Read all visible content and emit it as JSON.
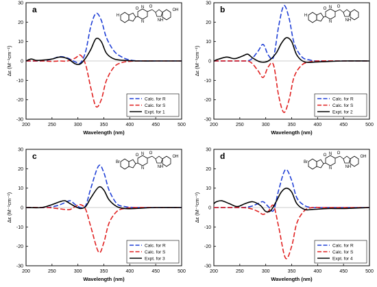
{
  "figure": {
    "colors": {
      "R": "#1f3fd6",
      "S": "#e02020",
      "expt": "#000000"
    },
    "panels": [
      {
        "label": "a",
        "structure": {
          "substituent": "H",
          "hydroxyl": "OH",
          "ring_atoms": [
            "O",
            "N",
            "N",
            "O",
            "NH"
          ]
        }
      },
      {
        "label": "b",
        "structure": {
          "substituent": "H",
          "hydroxyl": "",
          "ring_atoms": [
            "O",
            "N",
            "N",
            "O",
            "NH"
          ]
        }
      },
      {
        "label": "c",
        "structure": {
          "substituent": "Br",
          "hydroxyl": "OH",
          "ring_atoms": [
            "O",
            "N",
            "N",
            "O",
            "NH"
          ]
        }
      },
      {
        "label": "d",
        "structure": {
          "substituent": "Br",
          "hydroxyl": "OH",
          "ring_atoms": [
            "O",
            "N",
            "N",
            "O",
            "NH"
          ]
        }
      }
    ]
  },
  "chart_data": [
    {
      "type": "line",
      "panel": "a",
      "xlabel": "Wavelength (nm)",
      "ylabel": "Δε (M⁻¹cm⁻¹)",
      "xlim": [
        200,
        500
      ],
      "ylim": [
        -30,
        30
      ],
      "xticks": [
        200,
        250,
        300,
        350,
        400,
        450,
        500
      ],
      "yticks": [
        -30,
        -20,
        -10,
        0,
        10,
        20,
        30
      ],
      "legend_position": "bottom-right",
      "series": [
        {
          "name": "Calc. for R",
          "style": "dashed",
          "color": "#1f3fd6",
          "x": [
            200,
            230,
            250,
            265,
            280,
            295,
            305,
            315,
            325,
            335,
            345,
            355,
            370,
            385,
            400,
            420,
            450,
            500
          ],
          "y": [
            0,
            0,
            1,
            2.2,
            1.5,
            -0.5,
            -1,
            5,
            18,
            24.5,
            21,
            12,
            5,
            2,
            0.5,
            0,
            0,
            0
          ]
        },
        {
          "name": "Calc. for S",
          "style": "dashed",
          "color": "#e02020",
          "x": [
            200,
            230,
            250,
            265,
            280,
            295,
            305,
            315,
            325,
            335,
            345,
            355,
            370,
            385,
            400,
            420,
            450,
            500
          ],
          "y": [
            0,
            0,
            -0.2,
            0,
            0,
            1.5,
            3,
            -2,
            -14,
            -23.5,
            -20,
            -10,
            -3,
            -0.8,
            -0.2,
            0,
            0,
            0
          ]
        },
        {
          "name": "Expt. for 1",
          "style": "solid",
          "color": "#000000",
          "x": [
            200,
            210,
            220,
            235,
            250,
            265,
            280,
            295,
            305,
            315,
            325,
            335,
            345,
            355,
            370,
            390,
            420,
            450,
            500
          ],
          "y": [
            0,
            1,
            0.3,
            0.5,
            1,
            2,
            1.2,
            -1.5,
            -1.5,
            1.5,
            6,
            11.5,
            10,
            4,
            1,
            0.3,
            0,
            0,
            0
          ]
        }
      ]
    },
    {
      "type": "line",
      "panel": "b",
      "xlabel": "Wavelength (nm)",
      "ylabel": "Δε (M⁻¹cm⁻¹)",
      "xlim": [
        200,
        500
      ],
      "ylim": [
        -30,
        30
      ],
      "xticks": [
        200,
        250,
        300,
        350,
        400,
        450,
        500
      ],
      "yticks": [
        -30,
        -20,
        -10,
        0,
        10,
        20,
        30
      ],
      "legend_position": "bottom-right",
      "series": [
        {
          "name": "Calc. for R",
          "style": "dashed",
          "color": "#1f3fd6",
          "x": [
            200,
            250,
            270,
            285,
            295,
            305,
            315,
            325,
            335,
            345,
            355,
            370,
            385,
            400,
            450,
            500
          ],
          "y": [
            0,
            0,
            0.5,
            5,
            8.5,
            3,
            2,
            18,
            28.5,
            22,
            9,
            2,
            0.5,
            0,
            0,
            0
          ]
        },
        {
          "name": "Calc. for S",
          "style": "dashed",
          "color": "#e02020",
          "x": [
            200,
            250,
            270,
            285,
            295,
            305,
            315,
            325,
            335,
            345,
            355,
            370,
            385,
            400,
            450,
            500
          ],
          "y": [
            0,
            0,
            -0.5,
            -5,
            -8.5,
            -3,
            -2,
            -18,
            -26.5,
            -20,
            -8,
            -2,
            -0.5,
            0,
            0,
            0
          ]
        },
        {
          "name": "Expt. for 2",
          "style": "solid",
          "color": "#000000",
          "x": [
            200,
            210,
            225,
            240,
            255,
            265,
            275,
            290,
            305,
            320,
            330,
            340,
            350,
            360,
            375,
            400,
            450,
            500
          ],
          "y": [
            0,
            1,
            2,
            1.2,
            2.5,
            3.5,
            1.5,
            -0.5,
            0,
            4,
            9,
            12,
            10,
            3,
            -0.5,
            -0.5,
            0,
            0
          ]
        }
      ]
    },
    {
      "type": "line",
      "panel": "c",
      "xlabel": "Wavelength (nm)",
      "ylabel": "Δε (M⁻¹cm⁻¹)",
      "xlim": [
        200,
        500
      ],
      "ylim": [
        -30,
        30
      ],
      "xticks": [
        200,
        250,
        300,
        350,
        400,
        450,
        500
      ],
      "yticks": [
        -30,
        -20,
        -10,
        0,
        10,
        20,
        30
      ],
      "legend_position": "bottom-right",
      "series": [
        {
          "name": "Calc. for R",
          "style": "dashed",
          "color": "#1f3fd6",
          "x": [
            200,
            240,
            260,
            275,
            285,
            295,
            305,
            315,
            325,
            340,
            350,
            360,
            375,
            390,
            410,
            450,
            500
          ],
          "y": [
            0,
            0,
            1,
            2.5,
            3.5,
            1.5,
            0,
            1,
            10,
            21.5,
            18,
            9,
            2,
            0.5,
            0,
            0,
            0
          ]
        },
        {
          "name": "Calc. for S",
          "style": "dashed",
          "color": "#e02020",
          "x": [
            200,
            240,
            260,
            275,
            285,
            295,
            305,
            315,
            325,
            340,
            350,
            360,
            375,
            390,
            410,
            450,
            500
          ],
          "y": [
            0,
            0,
            -0.5,
            -1,
            -1,
            0.5,
            1.5,
            -1,
            -10,
            -23,
            -18,
            -8,
            -2,
            -0.5,
            0,
            0,
            0
          ]
        },
        {
          "name": "Expt. for 3",
          "style": "solid",
          "color": "#000000",
          "x": [
            200,
            230,
            250,
            265,
            275,
            285,
            295,
            305,
            315,
            325,
            340,
            350,
            360,
            375,
            390,
            410,
            450,
            500
          ],
          "y": [
            0,
            0,
            1.5,
            3,
            3.5,
            2,
            0.5,
            -0.5,
            0.5,
            5,
            10.5,
            9,
            4,
            0.5,
            -0.5,
            -0.5,
            0,
            0
          ]
        }
      ]
    },
    {
      "type": "line",
      "panel": "d",
      "xlabel": "Wavelength (nm)",
      "ylabel": "Δε (M⁻¹cm⁻¹)",
      "xlim": [
        200,
        500
      ],
      "ylim": [
        -30,
        30
      ],
      "xticks": [
        200,
        250,
        300,
        350,
        400,
        450,
        500
      ],
      "yticks": [
        -30,
        -20,
        -10,
        0,
        10,
        20,
        30
      ],
      "legend_position": "bottom-right",
      "series": [
        {
          "name": "Calc. for R",
          "style": "dashed",
          "color": "#1f3fd6",
          "x": [
            200,
            250,
            270,
            285,
            295,
            305,
            315,
            325,
            338,
            350,
            360,
            375,
            390,
            410,
            450,
            500
          ],
          "y": [
            0,
            0,
            0.5,
            2,
            3,
            0.5,
            -1.5,
            9,
            19.5,
            14,
            5,
            1,
            0,
            0,
            0,
            0
          ]
        },
        {
          "name": "Calc. for S",
          "style": "dashed",
          "color": "#e02020",
          "x": [
            200,
            250,
            270,
            285,
            295,
            305,
            315,
            325,
            338,
            350,
            360,
            375,
            390,
            410,
            450,
            500
          ],
          "y": [
            0,
            0,
            -0.5,
            -2,
            -3.5,
            -2,
            1,
            -10,
            -26,
            -20,
            -8,
            -1.5,
            0,
            0,
            0,
            0
          ]
        },
        {
          "name": "Expt. for 4",
          "style": "solid",
          "color": "#000000",
          "x": [
            200,
            205,
            215,
            230,
            245,
            260,
            275,
            290,
            300,
            310,
            320,
            330,
            340,
            350,
            360,
            375,
            390,
            420,
            450,
            500
          ],
          "y": [
            2,
            3,
            3.5,
            2,
            0.5,
            2,
            3,
            1,
            -2,
            -1.5,
            3,
            8,
            10,
            8,
            2,
            -1,
            -1,
            -0.5,
            -0.5,
            0
          ]
        }
      ]
    }
  ]
}
